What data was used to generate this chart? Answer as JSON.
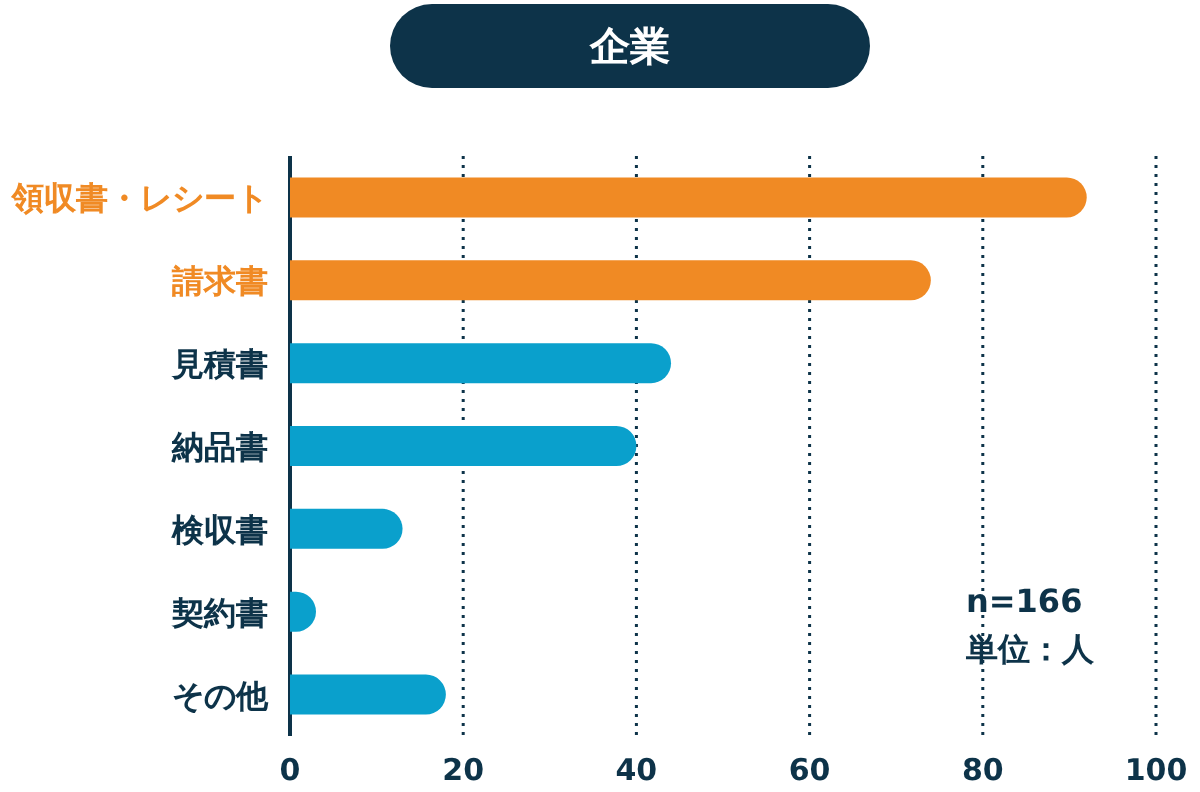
{
  "chart_data": {
    "type": "bar",
    "orientation": "horizontal",
    "title": "企業",
    "categories": [
      "領収書・レシート",
      "請求書",
      "見積書",
      "納品書",
      "検収書",
      "契約書",
      "その他"
    ],
    "values": [
      92,
      74,
      44,
      40,
      13,
      3,
      18
    ],
    "colors": [
      "#f08a24",
      "#f08a24",
      "#0aa0cc",
      "#0aa0cc",
      "#0aa0cc",
      "#0aa0cc",
      "#0aa0cc"
    ],
    "xlim": [
      0,
      100
    ],
    "xticks": [
      0,
      20,
      40,
      60,
      80,
      100
    ],
    "grid": "x",
    "annotations": [
      "n=166",
      "単位：人"
    ]
  }
}
